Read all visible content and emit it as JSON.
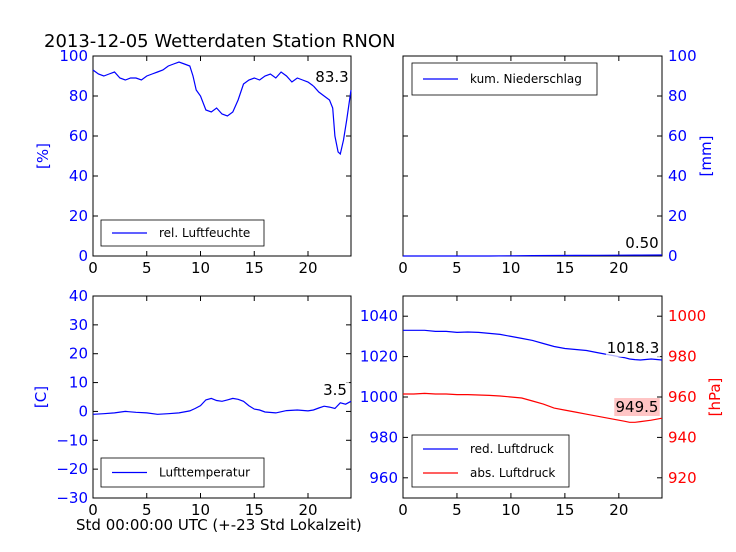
{
  "title": "2013-12-05 Wetterdaten Station RNON",
  "xlabel": "Std 00:00:00 UTC (+-23 Std Lokalzeit)",
  "colors": {
    "blue": "#0000ff",
    "red": "#ff0000",
    "highlight": "#ffb6b6"
  },
  "chart_data": [
    {
      "type": "line",
      "ylabel": "[%]",
      "xlim": [
        0,
        24
      ],
      "ylim": [
        0,
        100
      ],
      "xticks": [
        "0",
        "5",
        "10",
        "15",
        "20"
      ],
      "yticks": [
        "0",
        "20",
        "40",
        "60",
        "80",
        "100"
      ],
      "yaxis_side": "left",
      "legend": "bottom-left",
      "annotation": "83.3",
      "series": [
        {
          "name": "rel. Luftfeuchte",
          "color": "#0000ff",
          "x": [
            0,
            0.5,
            1,
            1.5,
            2,
            2.5,
            3,
            3.5,
            4,
            4.5,
            5,
            5.5,
            6,
            6.5,
            7,
            7.5,
            8,
            8.5,
            9,
            9.3,
            9.6,
            10,
            10.5,
            11,
            11.5,
            12,
            12.5,
            13,
            13.5,
            14,
            14.5,
            15,
            15.5,
            16,
            16.5,
            17,
            17.5,
            18,
            18.5,
            19,
            19.5,
            20,
            20.5,
            21,
            21.5,
            22,
            22.3,
            22.5,
            22.8,
            23,
            23.3,
            23.6,
            24
          ],
          "y": [
            93,
            91,
            90,
            91,
            92,
            89,
            88,
            89,
            89,
            88,
            90,
            91,
            92,
            93,
            95,
            96,
            97,
            96,
            95,
            90,
            83,
            80,
            73,
            72,
            74,
            71,
            70,
            72,
            78,
            86,
            88,
            89,
            88,
            90,
            91,
            89,
            92,
            90,
            87,
            89,
            88,
            87,
            85,
            82,
            80,
            78,
            74,
            60,
            52,
            51,
            58,
            68,
            83
          ]
        }
      ]
    },
    {
      "type": "line",
      "ylabel": "[mm]",
      "xlim": [
        0,
        24
      ],
      "ylim": [
        0,
        100
      ],
      "xticks": [
        "0",
        "5",
        "10",
        "15",
        "20"
      ],
      "yticks": [
        "0",
        "20",
        "40",
        "60",
        "80",
        "100"
      ],
      "yaxis_side": "right",
      "legend": "top-left",
      "annotation": "0.50",
      "series": [
        {
          "name": "kum. Niederschlag",
          "color": "#0000ff",
          "x": [
            0,
            8,
            10,
            12,
            14,
            16,
            18,
            20,
            22,
            24
          ],
          "y": [
            0,
            0,
            0.1,
            0.2,
            0.25,
            0.3,
            0.35,
            0.4,
            0.45,
            0.5
          ]
        }
      ]
    },
    {
      "type": "line",
      "ylabel": "[C]",
      "xlim": [
        0,
        24
      ],
      "ylim": [
        -30,
        40
      ],
      "xticks": [
        "0",
        "5",
        "10",
        "15",
        "20"
      ],
      "yticks": [
        "−30",
        "−20",
        "−10",
        "0",
        "10",
        "20",
        "30",
        "40"
      ],
      "yaxis_side": "left",
      "legend": "bottom-left",
      "annotation": "3.5",
      "series": [
        {
          "name": "Lufttemperatur",
          "color": "#0000ff",
          "x": [
            0,
            1,
            2,
            3,
            4,
            5,
            6,
            7,
            8,
            9,
            9.5,
            10,
            10.5,
            11,
            11.5,
            12,
            12.5,
            13,
            13.5,
            14,
            14.5,
            15,
            15.5,
            16,
            17,
            18,
            19,
            20,
            20.5,
            21,
            21.5,
            22,
            22.5,
            23,
            23.5,
            24
          ],
          "y": [
            -1,
            -0.8,
            -0.5,
            0,
            -0.3,
            -0.5,
            -1,
            -0.8,
            -0.5,
            0.2,
            1,
            2,
            4,
            4.5,
            3.8,
            3.5,
            4,
            4.5,
            4.2,
            3.5,
            2,
            0.8,
            0.5,
            -0.2,
            -0.5,
            0.3,
            0.5,
            0.2,
            0.5,
            1.2,
            1.8,
            1.5,
            1,
            3,
            2.5,
            3.5
          ]
        }
      ]
    },
    {
      "type": "line",
      "ylabel": "[hPa]",
      "xlim": [
        0,
        24
      ],
      "ylim": [
        950,
        1050
      ],
      "xticks": [
        "0",
        "5",
        "10",
        "15",
        "20"
      ],
      "yticks": [
        "960",
        "980",
        "1000",
        "1020",
        "1040"
      ],
      "yaxis_side": "left",
      "y2lim": [
        910,
        1010
      ],
      "y2ticks": [
        "920",
        "940",
        "960",
        "980",
        "1000"
      ],
      "legend": "bottom-left",
      "annotations": [
        "1018.3",
        "949.5"
      ],
      "series": [
        {
          "name": "red. Luftdruck",
          "color": "#0000ff",
          "axis": "left",
          "x": [
            0,
            1,
            2,
            3,
            4,
            5,
            6,
            7,
            8,
            9,
            10,
            11,
            12,
            13,
            14,
            15,
            16,
            17,
            18,
            19,
            20,
            20.5,
            21,
            21.5,
            22,
            23,
            24
          ],
          "y": [
            1033,
            1033,
            1033,
            1032.5,
            1032.5,
            1032,
            1032.2,
            1032,
            1031.5,
            1031,
            1030,
            1029,
            1028,
            1026.5,
            1025,
            1024,
            1023.5,
            1023,
            1022,
            1021,
            1020,
            1019.5,
            1018.8,
            1018.5,
            1018.3,
            1018.8,
            1018.3
          ]
        },
        {
          "name": "abs. Luftdruck",
          "color": "#ff0000",
          "axis": "right",
          "x": [
            0,
            1,
            2,
            3,
            4,
            5,
            6,
            7,
            8,
            9,
            10,
            11,
            12,
            13,
            14,
            15,
            16,
            17,
            18,
            19,
            20,
            20.5,
            21,
            21.5,
            22,
            23,
            24
          ],
          "y": [
            961.5,
            961.5,
            961.8,
            961.5,
            961.5,
            961.2,
            961.2,
            961,
            960.8,
            960.5,
            960,
            959.5,
            958,
            956.5,
            954.5,
            953.5,
            952.5,
            951.5,
            950.5,
            949.5,
            948.5,
            948,
            947.5,
            947.5,
            947.8,
            948.5,
            949.5
          ]
        }
      ]
    }
  ]
}
